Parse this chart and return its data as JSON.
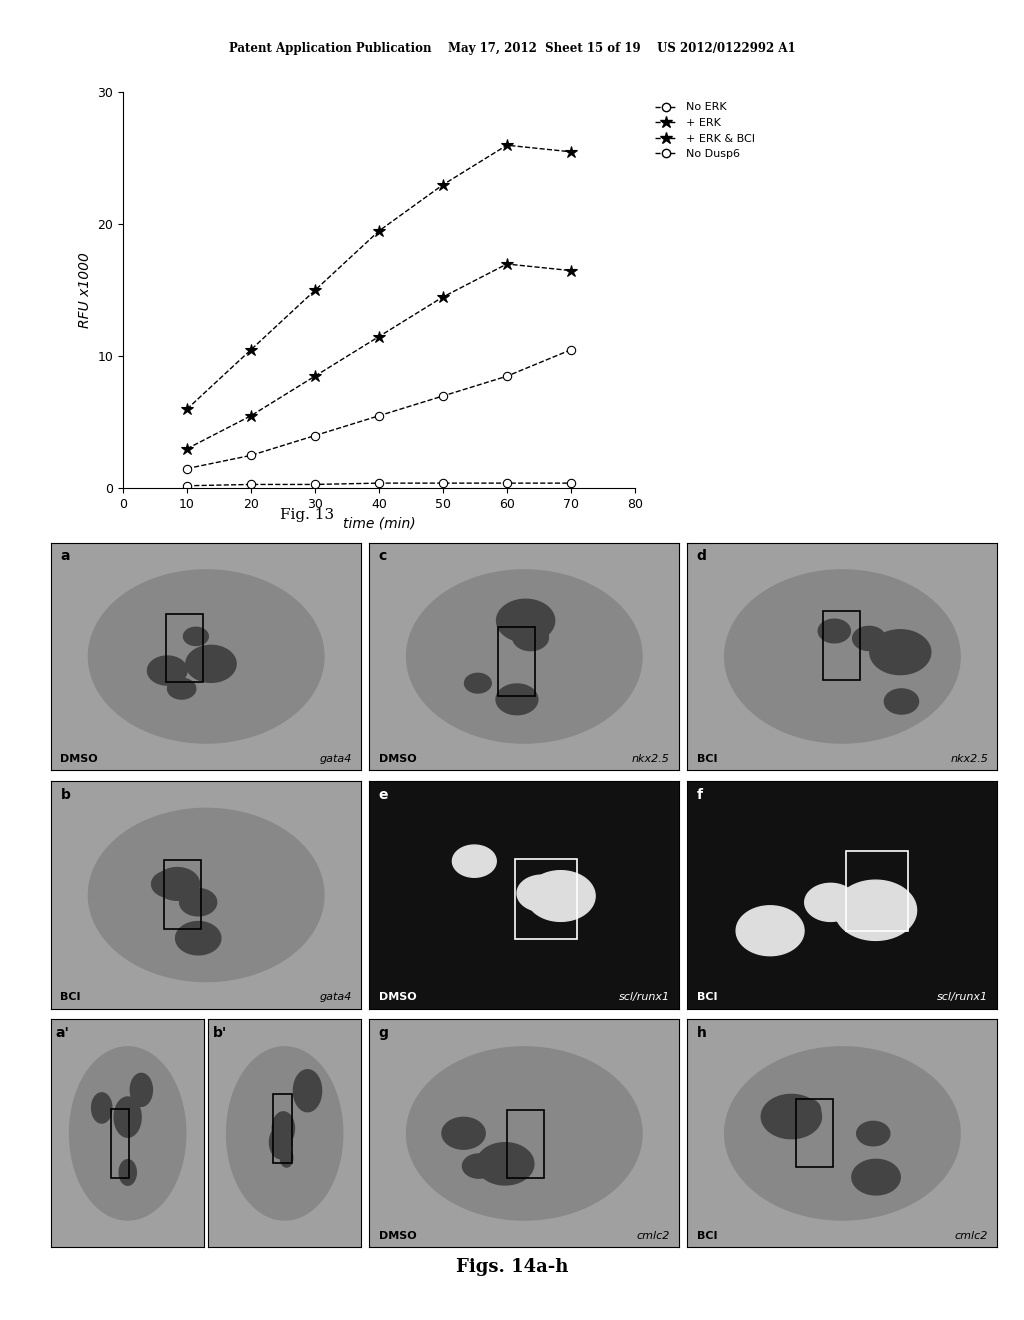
{
  "header_text": "Patent Application Publication    May 17, 2012  Sheet 15 of 19    US 2012/0122992 A1",
  "fig13_title": "Fig. 13",
  "figs14_title": "Figs. 14a-h",
  "chart": {
    "xlabel": "time (min)",
    "ylabel": "RFU x1000",
    "xlim": [
      0,
      80
    ],
    "ylim": [
      0,
      30
    ],
    "xticks": [
      0,
      10,
      20,
      30,
      40,
      50,
      60,
      70,
      80
    ],
    "yticks": [
      0,
      10,
      20,
      30
    ],
    "series": [
      {
        "label": "No ERK",
        "x": [
          10,
          20,
          30,
          40,
          50,
          60,
          70
        ],
        "y": [
          1.5,
          2.5,
          4.0,
          5.5,
          7.0,
          8.5,
          10.5
        ],
        "marker": "o",
        "markersize": 6,
        "markerfacecolor": "white",
        "markeredgecolor": "black",
        "linestyle": "--",
        "linecolor": "black",
        "linewidth": 1
      },
      {
        "label": "+ ERK",
        "x": [
          10,
          20,
          30,
          40,
          50,
          60,
          70
        ],
        "y": [
          3.0,
          5.5,
          8.5,
          11.5,
          14.5,
          17.0,
          16.5
        ],
        "marker": "*",
        "markersize": 9,
        "markerfacecolor": "black",
        "markeredgecolor": "black",
        "linestyle": "--",
        "linecolor": "black",
        "linewidth": 1
      },
      {
        "label": "+ ERK & BCI",
        "x": [
          10,
          20,
          30,
          40,
          50,
          60,
          70
        ],
        "y": [
          6.0,
          10.5,
          15.0,
          19.5,
          23.0,
          26.0,
          25.5
        ],
        "marker": "*",
        "markersize": 9,
        "markerfacecolor": "black",
        "markeredgecolor": "black",
        "linestyle": "--",
        "linecolor": "black",
        "linewidth": 1
      },
      {
        "label": "No Dusp6",
        "x": [
          10,
          20,
          30,
          40,
          50,
          60,
          70
        ],
        "y": [
          0.2,
          0.3,
          0.3,
          0.4,
          0.4,
          0.4,
          0.4
        ],
        "marker": "o",
        "markersize": 6,
        "markerfacecolor": "white",
        "markeredgecolor": "black",
        "linestyle": "--",
        "linecolor": "black",
        "linewidth": 1
      }
    ]
  }
}
